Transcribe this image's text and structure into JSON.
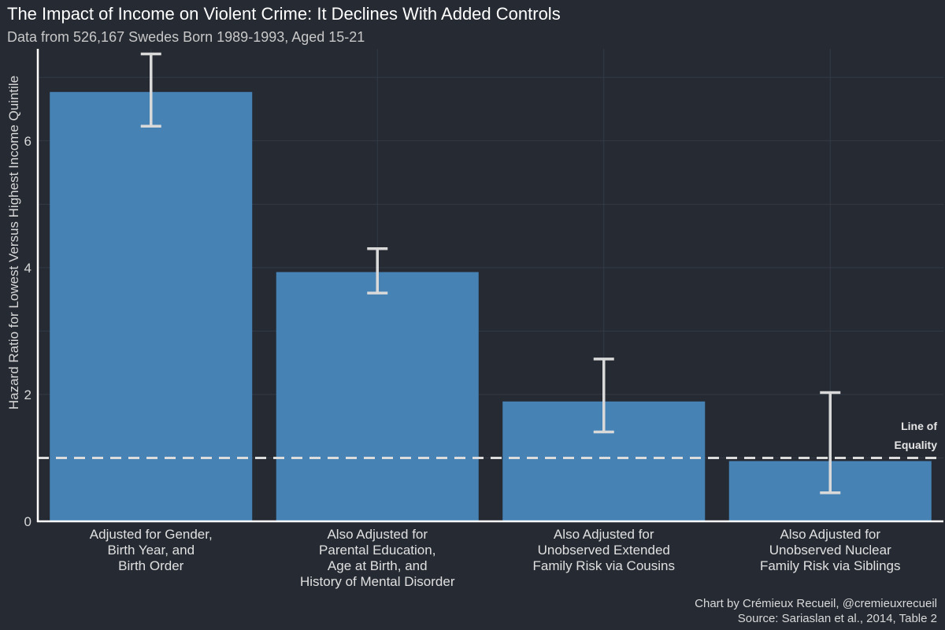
{
  "chart_data": {
    "type": "bar",
    "title": "The Impact of Income on Violent Crime: It Declines With Added Controls",
    "subtitle": "Data from 526,167 Swedes Born 1989-1993, Aged 15-21",
    "xlabel": "",
    "ylabel": "Hazard Ratio for Lowest Versus Highest Income Quintile",
    "ylim": [
      0,
      7.45
    ],
    "yticks": [
      "0",
      "2",
      "4",
      "6"
    ],
    "ytick_values": [
      0,
      2,
      4,
      6
    ],
    "grid": true,
    "bar_color": "#4682b4",
    "categories": [
      [
        "Adjusted for Gender,",
        "Birth Year, and",
        "Birth Order"
      ],
      [
        "Also Adjusted for",
        "Parental Education,",
        "Age at Birth, and",
        "History of Mental Disorder"
      ],
      [
        "Also Adjusted for",
        "Unobserved Extended",
        "Family Risk via Cousins"
      ],
      [
        "Also Adjusted for",
        "Unobserved Nuclear",
        "Family Risk via Siblings"
      ]
    ],
    "values": [
      6.77,
      3.93,
      1.89,
      0.95
    ],
    "ci_lower": [
      6.23,
      3.6,
      1.41,
      0.45
    ],
    "ci_upper": [
      7.37,
      4.3,
      2.56,
      2.03
    ],
    "reference_line": {
      "value": 1,
      "label_lines": [
        "Line of",
        "Equality"
      ]
    },
    "caption_lines": [
      "Chart by Crémieux Recueil, @cremieuxrecueil",
      "Source: Sariaslan et al., 2014, Table 2"
    ]
  }
}
